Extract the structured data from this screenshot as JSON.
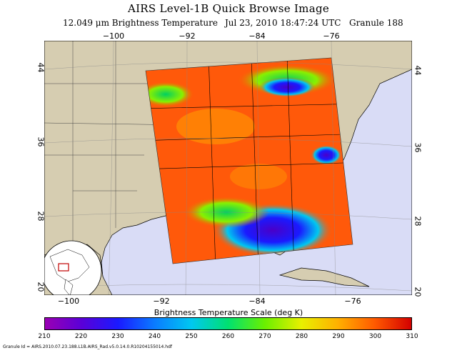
{
  "title": "AIRS Level-1B Quick Browse Image",
  "subtitle": {
    "channel": "12.049 μm Brightness Temperature",
    "datetime": "Jul 23, 2010 18:47:24 UTC",
    "granule": "Granule 188"
  },
  "map": {
    "lon_ticks_top": [
      "−100",
      "−92",
      "−84",
      "−76"
    ],
    "lon_ticks_bottom": [
      "−100",
      "−92",
      "−84",
      "−76"
    ],
    "lat_ticks_left": [
      "44",
      "36",
      "28",
      "20"
    ],
    "lat_ticks_right": [
      "44",
      "36",
      "28",
      "20"
    ],
    "land_color": "#d6cdb1",
    "ocean_color": "#d9dcf6",
    "inset": "world-locator-globe"
  },
  "colorbar": {
    "title": "Brightness Temperature Scale (deg K)",
    "ticks": [
      "210",
      "220",
      "230",
      "240",
      "250",
      "260",
      "270",
      "280",
      "290",
      "300",
      "310"
    ],
    "colors": [
      "#9a00b4",
      "#5a00d8",
      "#1a1aff",
      "#0a7cff",
      "#00c8f0",
      "#00e070",
      "#6af000",
      "#e8f000",
      "#ffb000",
      "#ff5a00",
      "#d40000"
    ]
  },
  "granule_id": "Granule Id = AIRS.2010.07.23.188.L1B.AIRS_Rad.v5.0.14.0.R10204155014.hdf"
}
